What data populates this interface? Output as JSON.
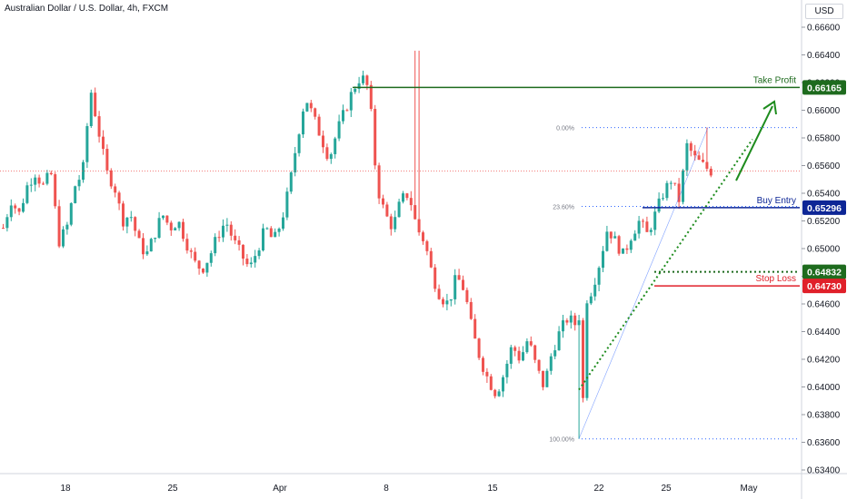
{
  "header": {
    "title": "Australian Dollar / U.S. Dollar, 4h, FXCM",
    "currency": "USD"
  },
  "chart_data": {
    "type": "candlestick",
    "ylim": [
      0.6338,
      0.6672
    ],
    "price_ticks": [
      "0.66600",
      "0.66400",
      "0.66200",
      "0.66000",
      "0.65800",
      "0.65600",
      "0.65400",
      "0.65200",
      "0.65000",
      "0.64800",
      "0.64600",
      "0.64400",
      "0.64200",
      "0.64000",
      "0.63800",
      "0.63600",
      "0.63400"
    ],
    "x_ticks": [
      "18",
      "25",
      "Apr",
      "8",
      "15",
      "22",
      "25",
      "May"
    ],
    "current_price": 0.6556,
    "levels": [
      {
        "name": "take-profit",
        "label": "Take Profit",
        "value": 0.66165,
        "value_label": "0.66165",
        "color": "#1e6b1e"
      },
      {
        "name": "buy-entry",
        "label": "Buy Entry",
        "value": 0.65296,
        "value_label": "0.65296",
        "color": "#0d2696"
      },
      {
        "name": "support",
        "label": "",
        "value": 0.64832,
        "value_label": "0.64832",
        "color": "#1e6b1e"
      },
      {
        "name": "stop-loss",
        "label": "Stop Loss",
        "value": 0.6473,
        "value_label": "0.64730",
        "color": "#e0202a"
      }
    ],
    "fib_levels": [
      {
        "label": "0.00%",
        "value": 0.65875
      },
      {
        "label": "23.60%",
        "value": 0.65305
      },
      {
        "label": "100.00%",
        "value": 0.63625
      }
    ],
    "candle_anchors": [
      0.6515,
      0.6535,
      0.6525,
      0.6545,
      0.6555,
      0.6545,
      0.6555,
      0.6505,
      0.6515,
      0.6545,
      0.6555,
      0.6615,
      0.6585,
      0.6555,
      0.6545,
      0.652,
      0.6525,
      0.6505,
      0.6495,
      0.651,
      0.6525,
      0.6515,
      0.652,
      0.6505,
      0.649,
      0.6485,
      0.6495,
      0.651,
      0.652,
      0.6505,
      0.6495,
      0.6485,
      0.65,
      0.6515,
      0.6505,
      0.652,
      0.6545,
      0.658,
      0.661,
      0.6595,
      0.658,
      0.6565,
      0.6585,
      0.66,
      0.6615,
      0.6625,
      0.6615,
      0.6545,
      0.6525,
      0.6515,
      0.6535,
      0.654,
      0.6515,
      0.6505,
      0.648,
      0.6465,
      0.646,
      0.648,
      0.647,
      0.644,
      0.642,
      0.6405,
      0.6395,
      0.641,
      0.643,
      0.642,
      0.6435,
      0.6415,
      0.64,
      0.6425,
      0.644,
      0.645,
      0.6445,
      0.646,
      0.647,
      0.649,
      0.6515,
      0.6505,
      0.6495,
      0.651,
      0.652,
      0.651,
      0.6525,
      0.654,
      0.655,
      0.6535,
      0.6575,
      0.6565,
      0.656,
      0.6556
    ]
  }
}
